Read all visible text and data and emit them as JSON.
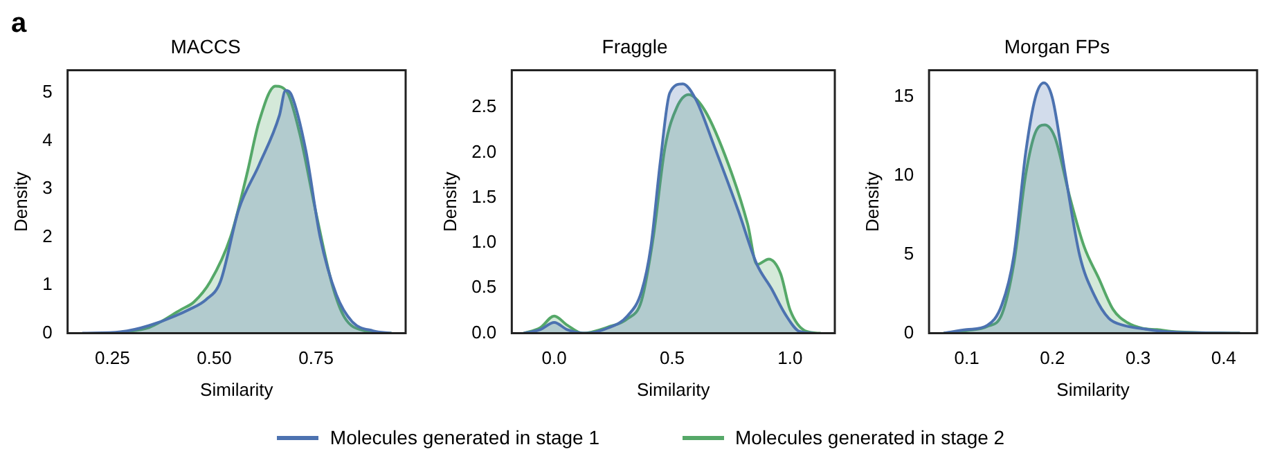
{
  "chart_data": [
    {
      "type": "area",
      "title": "MACCS",
      "xlabel": "Similarity",
      "ylabel": "Density",
      "annotations": [
        "a"
      ],
      "legend": "bottom",
      "xlim": [
        0.14,
        0.97
      ],
      "ylim": [
        0,
        5.47
      ],
      "xticks": [
        0.25,
        {
          "value": 0.5,
          "label": "0.50"
        },
        0.75
      ],
      "yticks": [
        0,
        1,
        2,
        3,
        4,
        5
      ],
      "series": [
        {
          "name": "Molecules generated in stage 1",
          "color": "#4c72b0",
          "x": [
            0.176,
            0.27,
            0.34,
            0.44,
            0.48,
            0.515,
            0.56,
            0.61,
            0.66,
            0.675,
            0.69,
            0.725,
            0.76,
            0.8,
            0.84,
            0.89,
            0.935
          ],
          "values": [
            0,
            0.03,
            0.16,
            0.5,
            0.7,
            1.07,
            2.57,
            3.5,
            4.53,
            5.05,
            4.95,
            3.8,
            2.0,
            0.8,
            0.23,
            0.05,
            0
          ]
        },
        {
          "name": "Molecules generated in stage 2",
          "color": "#55a868",
          "x": [
            0.27,
            0.34,
            0.42,
            0.45,
            0.49,
            0.54,
            0.58,
            0.61,
            0.65,
            0.68,
            0.71,
            0.75,
            0.79,
            0.82,
            0.87,
            0.935
          ],
          "values": [
            0.02,
            0.12,
            0.5,
            0.65,
            1.07,
            2.0,
            3.3,
            4.4,
            5.14,
            5.0,
            4.15,
            2.5,
            1.0,
            0.33,
            0.05,
            0
          ]
        }
      ]
    },
    {
      "type": "area",
      "title": "Fraggle",
      "xlabel": "Similarity",
      "ylabel": "Density",
      "xlim": [
        -0.18,
        1.19
      ],
      "ylim": [
        0,
        2.91
      ],
      "xticks": [
        {
          "value": 0,
          "label": "0.0"
        },
        0.5,
        {
          "value": 1,
          "label": "1.0"
        }
      ],
      "yticks": [
        {
          "value": 0,
          "label": "0.0"
        },
        0.5,
        {
          "value": 1,
          "label": "1.0"
        },
        1.5,
        {
          "value": 2,
          "label": "2.0"
        },
        2.5
      ],
      "series": [
        {
          "color": "#4c72b0",
          "x": [
            -0.13,
            -0.06,
            0,
            0.055,
            0.13,
            0.23,
            0.31,
            0.37,
            0.41,
            0.45,
            0.49,
            0.545,
            0.6,
            0.68,
            0.78,
            0.86,
            0.92,
            0.98,
            1.04,
            1.1
          ],
          "values": [
            0,
            0.04,
            0.12,
            0.04,
            0,
            0.06,
            0.19,
            0.46,
            0.96,
            1.9,
            2.66,
            2.76,
            2.59,
            2.06,
            1.36,
            0.76,
            0.5,
            0.21,
            0.02,
            0
          ]
        },
        {
          "color": "#55a868",
          "x": [
            -0.13,
            -0.06,
            0,
            0.055,
            0.12,
            0.23,
            0.31,
            0.37,
            0.42,
            0.47,
            0.52,
            0.57,
            0.64,
            0.74,
            0.82,
            0.86,
            0.91,
            0.96,
            1.0,
            1.07,
            1.13
          ],
          "values": [
            0,
            0.06,
            0.19,
            0.09,
            0,
            0.07,
            0.16,
            0.36,
            1.06,
            2.06,
            2.5,
            2.64,
            2.46,
            1.86,
            1.21,
            0.76,
            0.82,
            0.66,
            0.26,
            0.02,
            0
          ]
        }
      ]
    },
    {
      "type": "area",
      "title": "Morgan FPs",
      "xlabel": "Similarity",
      "ylabel": "Density",
      "xlim": [
        0.056,
        0.439
      ],
      "ylim": [
        0,
        16.66
      ],
      "xticks": [
        0.1,
        0.2,
        0.3,
        0.4
      ],
      "yticks": [
        0,
        5,
        10,
        15
      ],
      "series": [
        {
          "color": "#4c72b0",
          "x": [
            0.073,
            0.1,
            0.124,
            0.141,
            0.155,
            0.169,
            0.18,
            0.19,
            0.2,
            0.215,
            0.232,
            0.249,
            0.266,
            0.283,
            0.305,
            0.334,
            0.419
          ],
          "values": [
            0,
            0.23,
            0.5,
            1.8,
            4.9,
            11.5,
            14.9,
            15.86,
            14.9,
            10.1,
            4.9,
            2.4,
            0.94,
            0.5,
            0.29,
            0.09,
            0
          ]
        },
        {
          "color": "#55a868",
          "x": [
            0.073,
            0.1,
            0.124,
            0.141,
            0.155,
            0.169,
            0.18,
            0.191,
            0.203,
            0.22,
            0.237,
            0.254,
            0.271,
            0.288,
            0.305,
            0.322,
            0.345,
            0.419
          ],
          "values": [
            0,
            0.17,
            0.43,
            1.2,
            4.4,
            10.1,
            12.7,
            13.2,
            12.4,
            8.7,
            5.5,
            3.5,
            1.5,
            0.66,
            0.31,
            0.23,
            0.09,
            0
          ]
        }
      ]
    }
  ]
}
